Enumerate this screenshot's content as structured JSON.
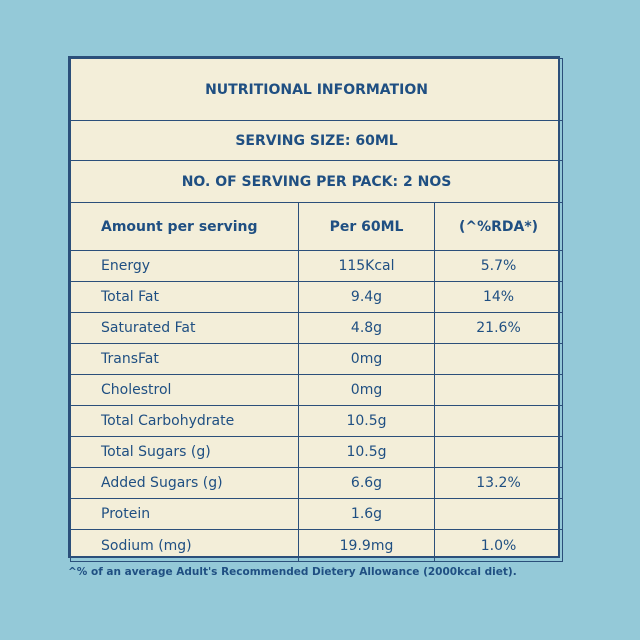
{
  "header": {
    "title": "NUTRITIONAL INFORMATION",
    "serving_size": "SERVING SIZE: 60ML",
    "servings_per_pack": "NO. OF SERVING PER PACK: 2 NOS"
  },
  "columns": {
    "nutrient": "Amount per serving",
    "per_serving": "Per 60ML",
    "rda": "(^%RDA*)"
  },
  "rows": [
    {
      "nutrient": "Energy",
      "amount": "115Kcal",
      "rda": "5.7%"
    },
    {
      "nutrient": "Total Fat",
      "amount": "9.4g",
      "rda": "14%"
    },
    {
      "nutrient": "Saturated Fat",
      "amount": "4.8g",
      "rda": "21.6%"
    },
    {
      "nutrient": "TransFat",
      "amount": "0mg",
      "rda": ""
    },
    {
      "nutrient": "Cholestrol",
      "amount": "0mg",
      "rda": ""
    },
    {
      "nutrient": "Total Carbohydrate",
      "amount": "10.5g",
      "rda": ""
    },
    {
      "nutrient": "Total Sugars (g)",
      "amount": "10.5g",
      "rda": ""
    },
    {
      "nutrient": "Added Sugars (g)",
      "amount": "6.6g",
      "rda": "13.2%"
    },
    {
      "nutrient": "Protein",
      "amount": "1.6g",
      "rda": ""
    },
    {
      "nutrient": "Sodium (mg)",
      "amount": "19.9mg",
      "rda": "1.0%"
    }
  ],
  "footnote": "^% of an average Adult's Recommended Dietery Allowance  (2000kcal diet).",
  "colors": {
    "background": "#94c9d8",
    "panel": "#f3eed9",
    "text": "#1f4f82",
    "border": "#2b4f7a"
  }
}
